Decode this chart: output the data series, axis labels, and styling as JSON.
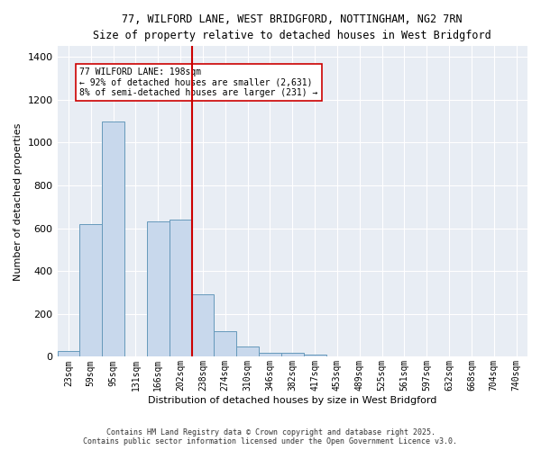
{
  "title_line1": "77, WILFORD LANE, WEST BRIDGFORD, NOTTINGHAM, NG2 7RN",
  "title_line2": "Size of property relative to detached houses in West Bridgford",
  "xlabel": "Distribution of detached houses by size in West Bridgford",
  "ylabel": "Number of detached properties",
  "bar_labels": [
    "23sqm",
    "59sqm",
    "95sqm",
    "131sqm",
    "166sqm",
    "202sqm",
    "238sqm",
    "274sqm",
    "310sqm",
    "346sqm",
    "382sqm",
    "417sqm",
    "453sqm",
    "489sqm",
    "525sqm",
    "561sqm",
    "597sqm",
    "632sqm",
    "668sqm",
    "704sqm",
    "740sqm"
  ],
  "bar_values": [
    28,
    620,
    1100,
    0,
    630,
    640,
    290,
    120,
    50,
    20,
    20,
    10,
    0,
    0,
    0,
    0,
    0,
    0,
    0,
    0,
    0
  ],
  "bar_color": "#c8d8ec",
  "bar_edge_color": "#6699bb",
  "bg_color": "#e8edf4",
  "grid_color": "#ffffff",
  "fig_bg_color": "#ffffff",
  "vline_color": "#cc0000",
  "vline_x_idx": 6,
  "annotation_text": "77 WILFORD LANE: 198sqm\n← 92% of detached houses are smaller (2,631)\n8% of semi-detached houses are larger (231) →",
  "annotation_box_color": "white",
  "annotation_box_edge": "#cc0000",
  "ylim": [
    0,
    1450
  ],
  "yticks": [
    0,
    200,
    400,
    600,
    800,
    1000,
    1200,
    1400
  ],
  "footer_line1": "Contains HM Land Registry data © Crown copyright and database right 2025.",
  "footer_line2": "Contains public sector information licensed under the Open Government Licence v3.0."
}
